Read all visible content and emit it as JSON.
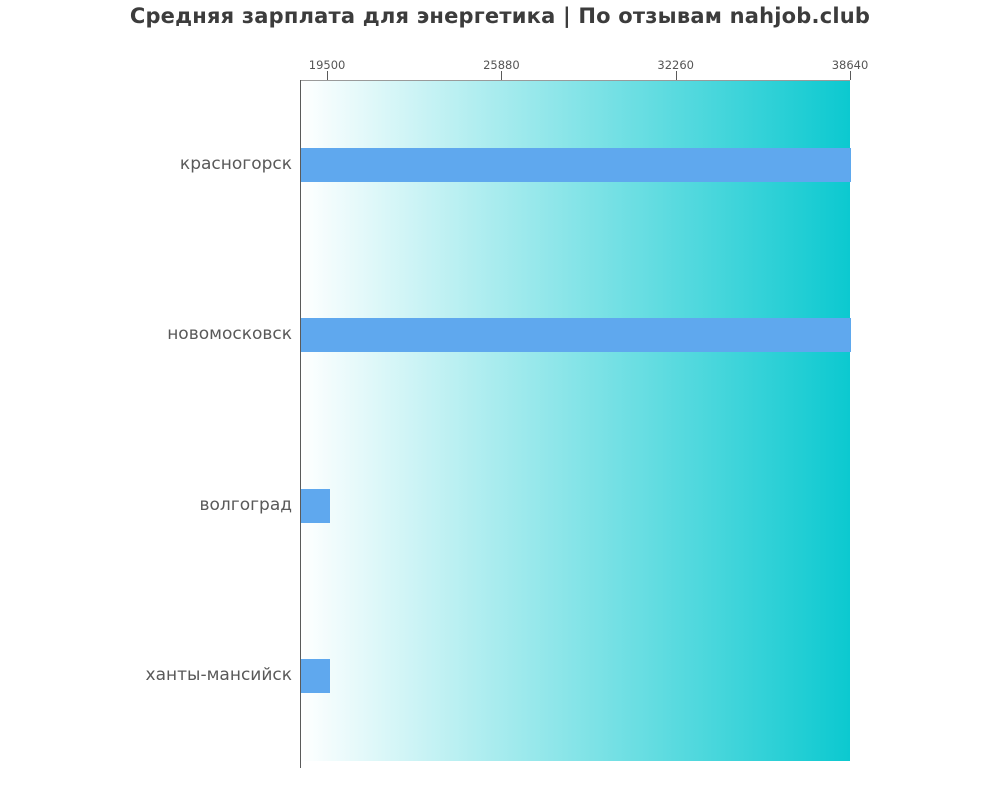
{
  "page": {
    "background": "#ffffff"
  },
  "chart_data": {
    "type": "bar",
    "orientation": "horizontal",
    "title": "Средняя зарплата для энергетика | По отзывам nahjob.club",
    "categories": [
      "красногорск",
      "новомосковск",
      "волгоград",
      "ханты-мансийск"
    ],
    "values": [
      38640,
      38640,
      19560,
      19560
    ],
    "xticks": [
      "19500",
      "25880",
      "32260",
      "38640"
    ],
    "xtick_values": [
      19500,
      25880,
      32260,
      38640
    ],
    "xlim": [
      18510,
      38640
    ],
    "xlabel": "",
    "ylabel": "",
    "grid": false,
    "legend_position": "none",
    "colors": {
      "bar": "#5fa8ee",
      "plot_gradient_start": "#ffffff",
      "plot_gradient_end": "#0cc9d0",
      "axis_line": "#5a5a5a",
      "plot_border": "#9a9a9a",
      "title_text": "#3c3c3c",
      "tick_text": "#555555",
      "category_text": "#595959"
    }
  }
}
